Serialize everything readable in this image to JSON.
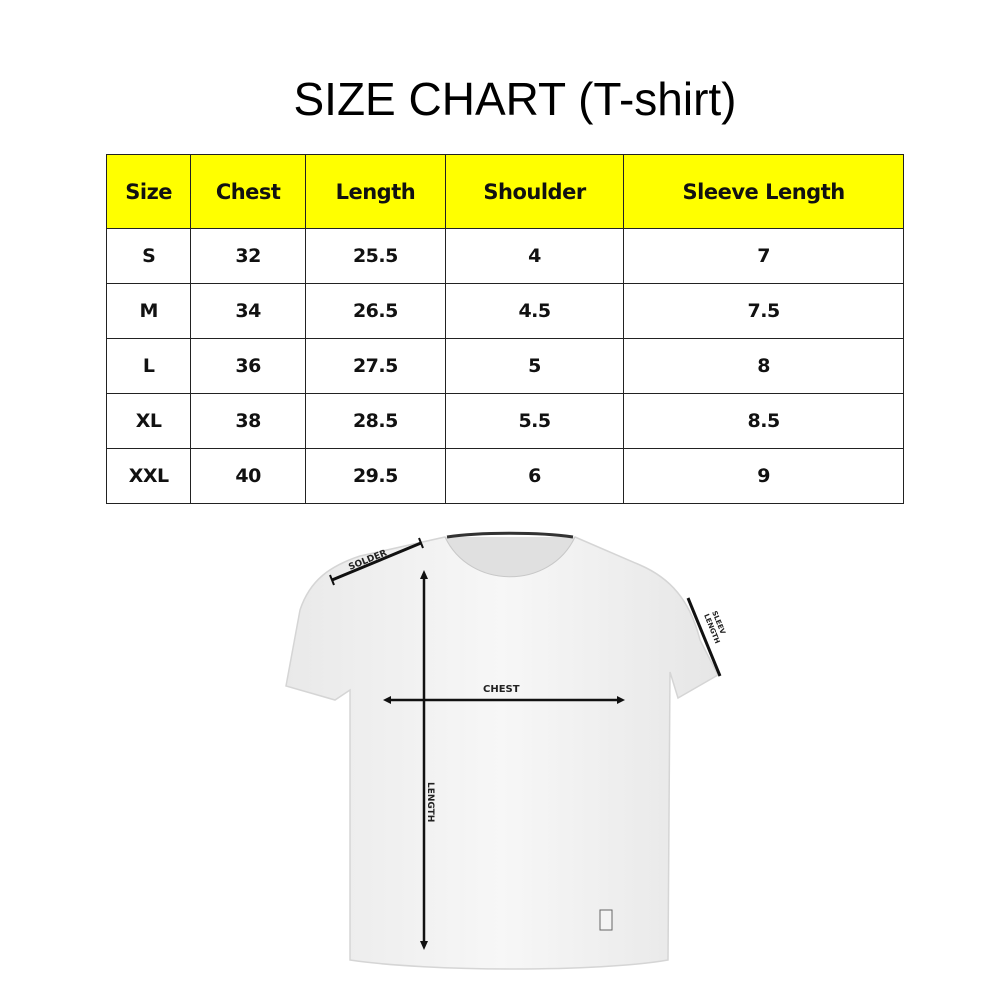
{
  "title": "SIZE CHART (T-shirt)",
  "table": {
    "headers": [
      "Size",
      "Chest",
      "Length",
      "Shoulder",
      "Sleeve Length"
    ],
    "rows": [
      [
        "S",
        "32",
        "25.5",
        "4",
        "7"
      ],
      [
        "M",
        "34",
        "26.5",
        "4.5",
        "7.5"
      ],
      [
        "L",
        "36",
        "27.5",
        "5",
        "8"
      ],
      [
        "XL",
        "38",
        "28.5",
        "5.5",
        "8.5"
      ],
      [
        "XXL",
        "40",
        "29.5",
        "6",
        "9"
      ]
    ],
    "header_color": "#ffff00"
  },
  "diagram": {
    "labels": {
      "shoulder": "SOLDER",
      "sleeve_line1": "SLEEV",
      "sleeve_line2": "LENGTH",
      "chest": "CHEST",
      "length": "LENGTH"
    }
  }
}
